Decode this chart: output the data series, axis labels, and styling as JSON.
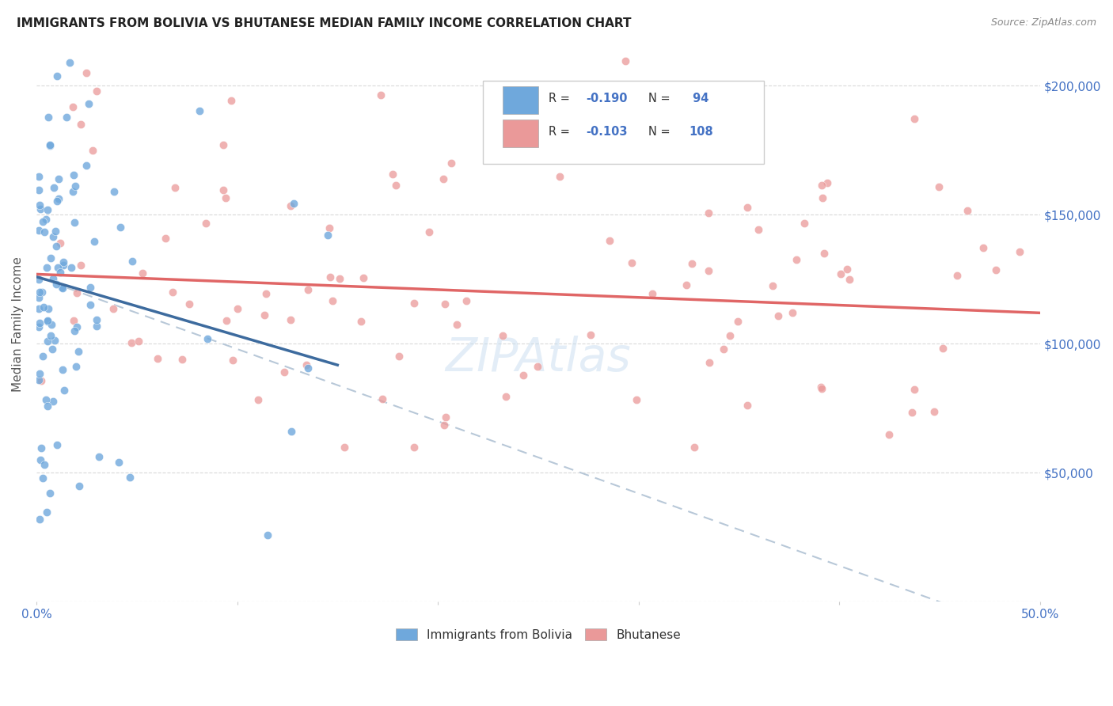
{
  "title": "IMMIGRANTS FROM BOLIVIA VS BHUTANESE MEDIAN FAMILY INCOME CORRELATION CHART",
  "source": "Source: ZipAtlas.com",
  "ylabel": "Median Family Income",
  "yticks": [
    0,
    50000,
    100000,
    150000,
    200000
  ],
  "ytick_labels": [
    "",
    "$50,000",
    "$100,000",
    "$150,000",
    "$200,000"
  ],
  "xlim": [
    0.0,
    0.5
  ],
  "ylim": [
    0,
    215000
  ],
  "bolivia_color": "#6fa8dc",
  "bhutan_color": "#ea9999",
  "bolivia_line_color": "#3d6b9e",
  "bhutan_line_color": "#e06666",
  "dash_color": "#b8c8d8",
  "background_color": "#ffffff",
  "grid_color": "#d0d0d0",
  "watermark": "ZIPAtlas",
  "bolivia_reg_intercept": 126000,
  "bolivia_reg_slope": -228000,
  "bolivia_dash_intercept": 126000,
  "bolivia_dash_slope": -280000,
  "bhutan_reg_intercept": 127000,
  "bhutan_reg_slope": -30000
}
